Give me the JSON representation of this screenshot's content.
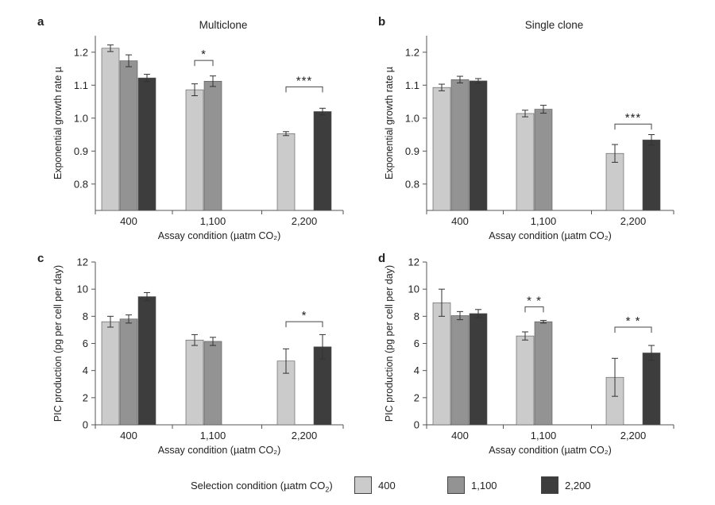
{
  "colors": {
    "s400": "#cbcbcb",
    "s1100": "#939393",
    "s2200": "#3d3d3d",
    "axis": "#555555"
  },
  "legend": {
    "title": "Selection condition (µatm CO",
    "title_sub": "2",
    "title_end": ")",
    "entries": [
      "400",
      "1,100",
      "2,200"
    ]
  },
  "chart_data": [
    {
      "type": "bar",
      "panel": "a",
      "title": "Multiclone",
      "xlabel": "Assay condition (µatm CO₂)",
      "ylabel": "Exponential growth rate µ",
      "categories": [
        "400",
        "1,100",
        "2,200"
      ],
      "ylim": [
        0.72,
        1.25
      ],
      "yticks": [
        0.8,
        0.9,
        1.0,
        1.1,
        1.2
      ],
      "series": [
        {
          "name": "400",
          "values": [
            1.212,
            1.086,
            0.953
          ],
          "errors": [
            0.01,
            0.018,
            0.006
          ]
        },
        {
          "name": "1,100",
          "values": [
            1.174,
            1.112,
            null
          ],
          "errors": [
            0.018,
            0.016,
            null
          ]
        },
        {
          "name": "2,200",
          "values": [
            1.122,
            null,
            1.02
          ],
          "errors": [
            0.011,
            null,
            0.01
          ]
        }
      ],
      "annotations": [
        {
          "text": "*",
          "category": 1,
          "from_series": 0,
          "to_series": 1,
          "y": 1.175
        },
        {
          "text": "***",
          "category": 2,
          "from_series": 0,
          "to_series": 2,
          "y": 1.095
        }
      ]
    },
    {
      "type": "bar",
      "panel": "b",
      "title": "Single clone",
      "xlabel": "Assay condition (µatm CO₂)",
      "ylabel": "Exponential growth rate µ",
      "categories": [
        "400",
        "1,100",
        "2,200"
      ],
      "ylim": [
        0.72,
        1.25
      ],
      "yticks": [
        0.8,
        0.9,
        1.0,
        1.1,
        1.2
      ],
      "series": [
        {
          "name": "400",
          "values": [
            1.093,
            1.014,
            0.893
          ],
          "errors": [
            0.01,
            0.01,
            0.027
          ]
        },
        {
          "name": "1,100",
          "values": [
            1.117,
            1.027,
            null
          ],
          "errors": [
            0.01,
            0.012,
            null
          ]
        },
        {
          "name": "2,200",
          "values": [
            1.113,
            null,
            0.934
          ],
          "errors": [
            0.007,
            null,
            0.016
          ]
        }
      ],
      "annotations": [
        {
          "text": "***",
          "category": 2,
          "from_series": 0,
          "to_series": 2,
          "y": 0.982
        }
      ]
    },
    {
      "type": "bar",
      "panel": "c",
      "title": "",
      "xlabel": "Assay condition (µatm CO₂)",
      "ylabel": "PIC production (pg per cell per day)",
      "categories": [
        "400",
        "1,100",
        "2,200"
      ],
      "ylim": [
        0,
        12
      ],
      "yticks": [
        0,
        2,
        4,
        6,
        8,
        10,
        12
      ],
      "series": [
        {
          "name": "400",
          "values": [
            7.6,
            6.25,
            4.7
          ],
          "errors": [
            0.4,
            0.4,
            0.9
          ]
        },
        {
          "name": "1,100",
          "values": [
            7.8,
            6.15,
            null
          ],
          "errors": [
            0.3,
            0.3,
            null
          ]
        },
        {
          "name": "2,200",
          "values": [
            9.45,
            null,
            5.75
          ],
          "errors": [
            0.3,
            null,
            0.9
          ]
        }
      ],
      "annotations": [
        {
          "text": "*",
          "category": 2,
          "from_series": 0,
          "to_series": 2,
          "y": 7.6
        }
      ]
    },
    {
      "type": "bar",
      "panel": "d",
      "title": "",
      "xlabel": "Assay condition (µatm CO₂)",
      "ylabel": "PIC production (pg per cell per day)",
      "categories": [
        "400",
        "1,100",
        "2,200"
      ],
      "ylim": [
        0,
        12
      ],
      "yticks": [
        0,
        2,
        4,
        6,
        8,
        10,
        12
      ],
      "series": [
        {
          "name": "400",
          "values": [
            9.0,
            6.55,
            3.5
          ],
          "errors": [
            1.0,
            0.3,
            1.4
          ]
        },
        {
          "name": "1,100",
          "values": [
            8.05,
            7.6,
            null
          ],
          "errors": [
            0.3,
            0.1,
            null
          ]
        },
        {
          "name": "2,200",
          "values": [
            8.2,
            null,
            5.3
          ],
          "errors": [
            0.3,
            null,
            0.55
          ]
        }
      ],
      "annotations": [
        {
          "text": "* *",
          "category": 1,
          "from_series": 0,
          "to_series": 1,
          "y": 8.7
        },
        {
          "text": "* *",
          "category": 2,
          "from_series": 0,
          "to_series": 2,
          "y": 7.2
        }
      ]
    }
  ]
}
